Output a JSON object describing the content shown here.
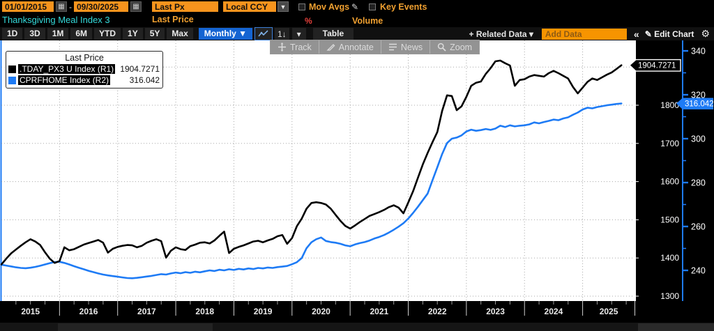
{
  "top_bar": {
    "date_from": "01/01/2015",
    "dash": "-",
    "date_to": "09/30/2025",
    "price_field": "Last Px",
    "currency_field": "Local CCY",
    "mov_avgs_label": "Mov Avgs",
    "key_events_label": "Key Events"
  },
  "title_row": {
    "chart_title": "Thanksgiving Meal Index 3",
    "study_label": "Last Price",
    "percent_label": "%",
    "volume_label": "Volume"
  },
  "toolbar": {
    "range_tabs": [
      "1D",
      "3D",
      "1M",
      "6M",
      "YTD",
      "1Y",
      "5Y",
      "Max"
    ],
    "period_label": "Monthly",
    "period_caret": "▼",
    "sort_icon_text": "1↓",
    "caret": "▾",
    "table_label": "Table",
    "related_data_label": "+ Related Data ▾",
    "add_data_placeholder": "Add Data",
    "collapse_label": "«",
    "edit_chart_label": "Edit Chart",
    "pencil_glyph": "✎",
    "gear_glyph": "⚙",
    "calendar_glyph": "▦"
  },
  "float_toolbar": {
    "items": [
      "Track",
      "Annotate",
      "News",
      "Zoom"
    ]
  },
  "legend": {
    "title": "Last Price",
    "entries": [
      {
        "label": ".TDAY_PX3 U Index  (R1)",
        "value": "1904.7271",
        "swatch": "#000000"
      },
      {
        "label": "CPRFHOME Index  (R2)",
        "value": "316.042",
        "swatch": "#1e7bf5"
      }
    ]
  },
  "chart_data": {
    "type": "line",
    "title": "Thanksgiving Meal Index 3 — Last Price",
    "frequency": "monthly",
    "x_start": "2015-01",
    "x_end": "2025-09",
    "x_year_labels": [
      "2015",
      "2016",
      "2017",
      "2018",
      "2019",
      "2020",
      "2021",
      "2022",
      "2023",
      "2024",
      "2025"
    ],
    "background": "#ffffff",
    "grid": {
      "style": "dotted",
      "color": "#a8a8a8",
      "h_lines_axis": "R1",
      "v_lines": "year-boundaries"
    },
    "legend_position": "top-left",
    "axes": {
      "R1": {
        "side": "right-inner",
        "ticks": [
          1300,
          1400,
          1500,
          1600,
          1700,
          1800
        ],
        "grid_values": [
          1300,
          1400,
          1500,
          1600,
          1700,
          1800,
          1900
        ],
        "range": [
          1287,
          1970
        ],
        "label_color": "#ffffff"
      },
      "R2": {
        "side": "right-outer",
        "ticks": [
          240,
          260,
          280,
          300,
          320,
          340
        ],
        "minor_ticks": [
          250,
          270,
          290,
          310,
          330
        ],
        "range": [
          226,
          345
        ],
        "axis_color": "#1e7bf5",
        "label_color": "#ffffff"
      }
    },
    "last_value_tags": [
      {
        "axis": "R1",
        "text": "1904.7271",
        "value": 1904.7271,
        "fill": "#000000",
        "stroke": "#ffffff",
        "text_color": "#ffffff"
      },
      {
        "axis": "R2",
        "text": "316.042",
        "value": 316.042,
        "fill": "#1e7bf5",
        "stroke": "#1e7bf5",
        "text_color": "#ffffff"
      }
    ],
    "series": [
      {
        "name": ".TDAY_PX3 U Index",
        "axis": "R1",
        "color": "#000000",
        "values": [
          1383,
          1398,
          1412,
          1422,
          1432,
          1441,
          1449,
          1443,
          1434,
          1415,
          1398,
          1387,
          1392,
          1428,
          1420,
          1423,
          1429,
          1435,
          1439,
          1443,
          1447,
          1440,
          1414,
          1424,
          1429,
          1432,
          1434,
          1433,
          1428,
          1432,
          1440,
          1445,
          1449,
          1444,
          1401,
          1419,
          1428,
          1423,
          1421,
          1431,
          1435,
          1440,
          1441,
          1438,
          1446,
          1458,
          1469,
          1413,
          1424,
          1429,
          1433,
          1438,
          1443,
          1445,
          1441,
          1446,
          1450,
          1457,
          1460,
          1437,
          1452,
          1483,
          1503,
          1529,
          1544,
          1546,
          1544,
          1540,
          1529,
          1513,
          1497,
          1484,
          1477,
          1485,
          1494,
          1502,
          1510,
          1515,
          1520,
          1526,
          1533,
          1538,
          1532,
          1517,
          1545,
          1575,
          1610,
          1645,
          1675,
          1703,
          1730,
          1785,
          1826,
          1824,
          1787,
          1797,
          1822,
          1851,
          1859,
          1862,
          1882,
          1897,
          1915,
          1917,
          1910,
          1904,
          1851,
          1866,
          1868,
          1875,
          1879,
          1877,
          1875,
          1884,
          1890,
          1884,
          1877,
          1870,
          1848,
          1831,
          1846,
          1861,
          1870,
          1866,
          1873,
          1880,
          1886,
          1895,
          1904.7271
        ]
      },
      {
        "name": "CPRFHOME Index",
        "axis": "R2",
        "color": "#1e7bf5",
        "values": [
          242.6,
          242.2,
          241.8,
          241.4,
          241.1,
          241.0,
          241.2,
          241.6,
          242.1,
          242.7,
          243.3,
          243.8,
          243.9,
          243.4,
          242.7,
          241.9,
          241.2,
          240.5,
          239.8,
          239.2,
          238.6,
          238.1,
          237.7,
          237.4,
          237.1,
          236.8,
          236.5,
          236.4,
          236.6,
          236.9,
          237.2,
          237.5,
          237.9,
          238.3,
          238.1,
          238.6,
          239.0,
          238.7,
          239.2,
          238.9,
          239.4,
          239.1,
          239.6,
          240.0,
          239.7,
          240.3,
          240.0,
          240.5,
          240.2,
          240.7,
          240.4,
          240.9,
          240.6,
          241.1,
          240.9,
          241.3,
          241.1,
          241.5,
          241.7,
          242.0,
          242.8,
          243.7,
          245.6,
          250.1,
          252.8,
          254.2,
          255.0,
          253.4,
          252.9,
          252.6,
          252.1,
          251.4,
          251.0,
          251.8,
          252.4,
          252.9,
          253.6,
          254.5,
          255.2,
          256.1,
          257.2,
          258.5,
          259.9,
          261.5,
          263.6,
          266.2,
          269.0,
          272.0,
          275.0,
          281.0,
          287.0,
          293.0,
          298.0,
          300.0,
          300.5,
          301.5,
          303.3,
          304.1,
          303.6,
          303.9,
          304.4,
          304.0,
          304.6,
          305.9,
          305.3,
          306.1,
          305.6,
          305.9,
          306.1,
          306.5,
          307.4,
          307.0,
          307.6,
          308.1,
          308.7,
          308.4,
          309.2,
          309.7,
          310.9,
          311.9,
          313.3,
          314.1,
          313.8,
          314.4,
          314.8,
          315.2,
          315.5,
          315.8,
          316.042
        ]
      }
    ]
  }
}
